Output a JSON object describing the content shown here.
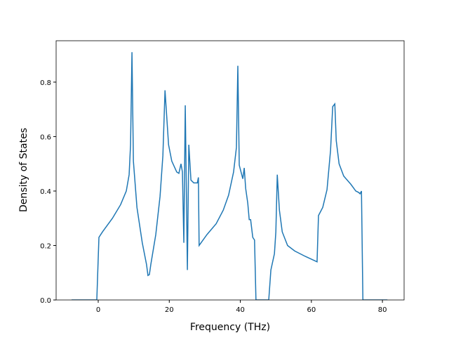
{
  "chart_data": {
    "type": "line",
    "xlabel": "Frequency (THz)",
    "ylabel": "Density of States",
    "xlim": [
      -11.85,
      86.1
    ],
    "ylim": [
      0,
      0.952
    ],
    "xticks": [
      0,
      20,
      40,
      60,
      80
    ],
    "yticks": [
      {
        "value": 0,
        "label": "0.0"
      },
      0.2,
      0.4,
      0.6,
      0.8
    ],
    "x": [
      -7.5,
      -0.4,
      0.2,
      1.2,
      4,
      6.3,
      7.9,
      8.7,
      9.1,
      9.5,
      9.9,
      10.9,
      12.4,
      13.6,
      14.0,
      14.4,
      14.8,
      16.2,
      17.4,
      18.2,
      18.8,
      19.2,
      19.8,
      20.7,
      22.1,
      22.7,
      23.3,
      23.7,
      24.1,
      24.5,
      25.1,
      25.5,
      26.1,
      26.9,
      27.9,
      28.2,
      28.4,
      30.6,
      33.2,
      35.2,
      36.7,
      38.1,
      38.9,
      39.3,
      39.7,
      40.7,
      41.1,
      41.5,
      42.1,
      42.5,
      42.9,
      43.5,
      44.0,
      44.4,
      48.0,
      48.6,
      49.6,
      50.0,
      50.4,
      51.0,
      51.8,
      53.3,
      55.3,
      58.3,
      61.6,
      62.0,
      63.2,
      64.4,
      65.4,
      66.0,
      66.6,
      67.0,
      67.8,
      69.1,
      71.1,
      72.5,
      73.3,
      73.7,
      74.1,
      74.5,
      81.4
    ],
    "series": [
      {
        "color": "#1f77b4",
        "values": [
          0,
          0,
          0.23,
          0.25,
          0.3,
          0.35,
          0.4,
          0.46,
          0.57,
          0.91,
          0.51,
          0.34,
          0.21,
          0.13,
          0.09,
          0.093,
          0.13,
          0.24,
          0.38,
          0.53,
          0.77,
          0.69,
          0.57,
          0.51,
          0.47,
          0.465,
          0.5,
          0.47,
          0.21,
          0.715,
          0.11,
          0.57,
          0.44,
          0.43,
          0.43,
          0.45,
          0.2,
          0.24,
          0.28,
          0.33,
          0.385,
          0.47,
          0.56,
          0.86,
          0.495,
          0.445,
          0.485,
          0.41,
          0.355,
          0.295,
          0.295,
          0.23,
          0.22,
          0,
          0,
          0.11,
          0.17,
          0.25,
          0.46,
          0.33,
          0.25,
          0.2,
          0.18,
          0.16,
          0.14,
          0.31,
          0.34,
          0.405,
          0.55,
          0.71,
          0.72,
          0.585,
          0.5,
          0.455,
          0.425,
          0.4,
          0.395,
          0.39,
          0.4,
          0,
          0
        ]
      }
    ]
  }
}
